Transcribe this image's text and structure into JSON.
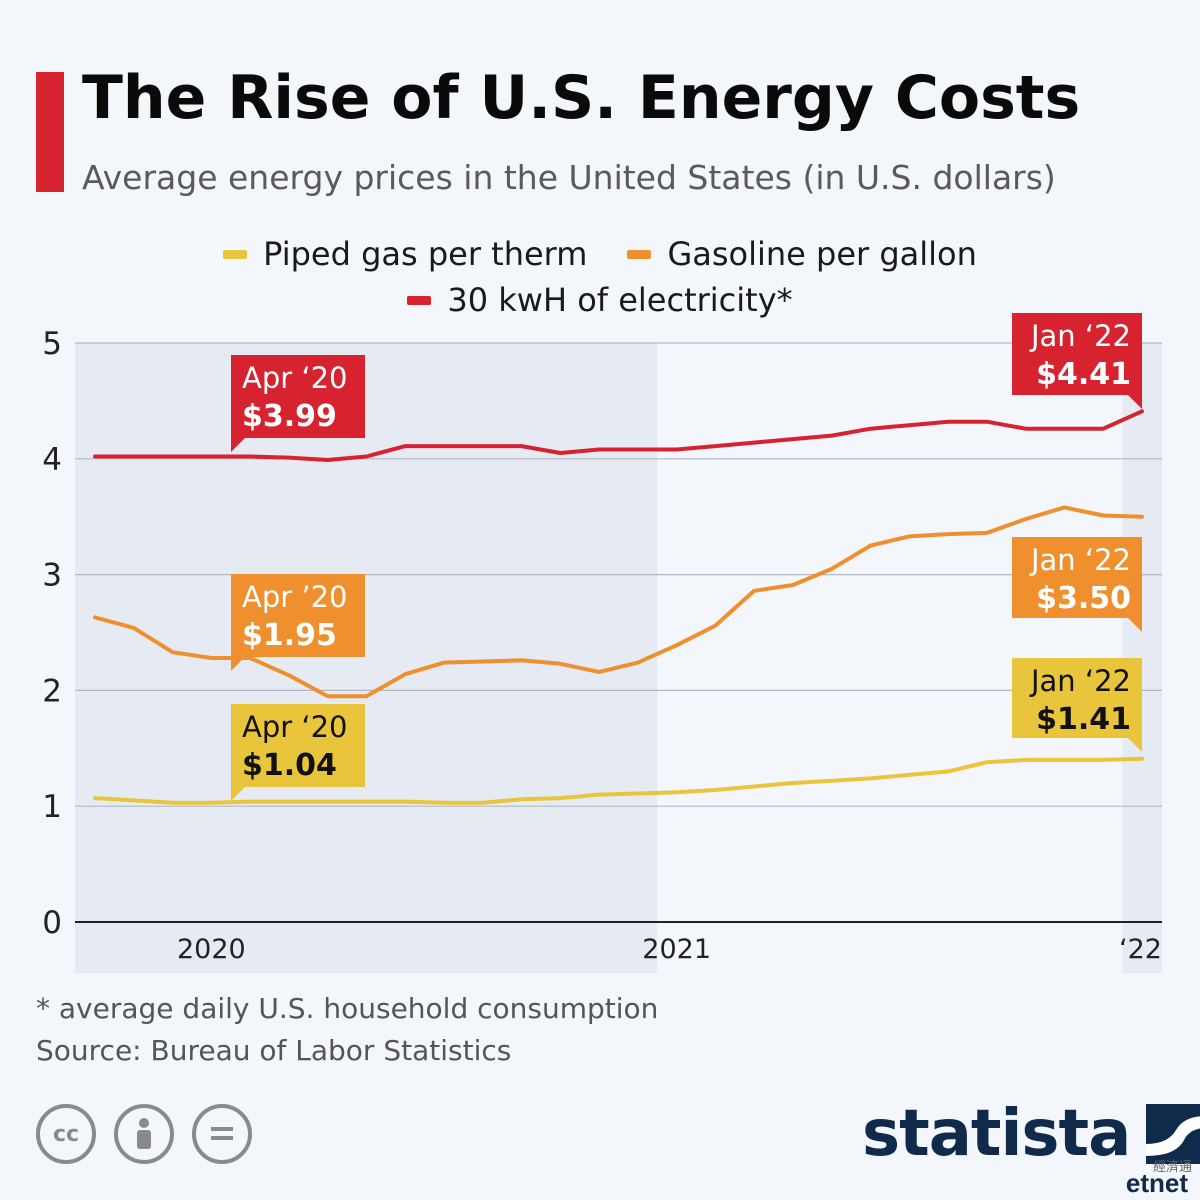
{
  "header": {
    "title": "The Rise of U.S. Energy Costs",
    "subtitle": "Average energy prices in the United States (in U.S. dollars)"
  },
  "legend": {
    "piped_gas": "Piped gas per therm",
    "gasoline": "Gasoline per gallon",
    "electricity": "30 kwH of electricity*"
  },
  "footer": {
    "footnote": "* average daily U.S. household consumption",
    "source": "Source: Bureau of Labor Statistics",
    "brand": "statista",
    "watermark": "etnet",
    "watermark_cn": "經濟通"
  },
  "licenses": [
    "cc",
    "by",
    "nd"
  ],
  "colors": {
    "electricity": "#d7232f",
    "gasoline": "#ef8f2e",
    "piped_gas": "#e8c53a",
    "accent": "#d7232f",
    "brand": "#0f2a4a"
  },
  "chart_data": {
    "type": "line",
    "title": "The Rise of U.S. Energy Costs",
    "subtitle": "Average energy prices in the United States (in U.S. dollars)",
    "x": [
      "Oct 2019",
      "Nov 2019",
      "Dec 2019",
      "Jan 2020",
      "Feb 2020",
      "Mar 2020",
      "Apr 2020",
      "May 2020",
      "Jun 2020",
      "Jul 2020",
      "Aug 2020",
      "Sep 2020",
      "Oct 2020",
      "Nov 2020",
      "Dec 2020",
      "Jan 2021",
      "Feb 2021",
      "Mar 2021",
      "Apr 2021",
      "May 2021",
      "Jun 2021",
      "Jul 2021",
      "Aug 2021",
      "Sep 2021",
      "Oct 2021",
      "Nov 2021",
      "Dec 2021",
      "Jan 2022"
    ],
    "x_tick_labels": [
      "2020",
      "2021",
      "‘22"
    ],
    "x_tick_at": [
      "Jan 2020",
      "Jan 2021",
      "Jan 2022"
    ],
    "shaded_periods": [
      [
        "Oct 2019",
        "Dec 2020"
      ],
      [
        "Jan 2022",
        "Jan 2022"
      ]
    ],
    "series": [
      {
        "name": "30 kwH of electricity*",
        "color": "#d7232f",
        "values": [
          4.02,
          4.02,
          4.02,
          4.02,
          4.02,
          4.01,
          3.99,
          4.02,
          4.11,
          4.11,
          4.11,
          4.11,
          4.05,
          4.08,
          4.08,
          4.08,
          4.11,
          4.14,
          4.17,
          4.2,
          4.26,
          4.29,
          4.32,
          4.32,
          4.26,
          4.26,
          4.26,
          4.41
        ]
      },
      {
        "name": "Gasoline per gallon",
        "color": "#ef8f2e",
        "values": [
          2.63,
          2.54,
          2.33,
          2.28,
          2.28,
          2.13,
          1.95,
          1.95,
          2.14,
          2.24,
          2.25,
          2.26,
          2.23,
          2.16,
          2.24,
          2.39,
          2.56,
          2.86,
          2.91,
          3.05,
          3.25,
          3.33,
          3.35,
          3.36,
          3.48,
          3.58,
          3.51,
          3.5
        ]
      },
      {
        "name": "Piped gas per therm",
        "color": "#e8c53a",
        "values": [
          1.07,
          1.05,
          1.03,
          1.03,
          1.04,
          1.04,
          1.04,
          1.04,
          1.04,
          1.03,
          1.03,
          1.06,
          1.07,
          1.1,
          1.11,
          1.12,
          1.14,
          1.17,
          1.2,
          1.22,
          1.24,
          1.27,
          1.3,
          1.38,
          1.4,
          1.4,
          1.4,
          1.41
        ]
      }
    ],
    "annotations": [
      {
        "series": "30 kwH of electricity*",
        "x": "Apr 2020",
        "label": "Apr ‘20",
        "value": "$3.99"
      },
      {
        "series": "30 kwH of electricity*",
        "x": "Jan 2022",
        "label": "Jan ‘22",
        "value": "$4.41"
      },
      {
        "series": "Gasoline per gallon",
        "x": "Apr 2020",
        "label": "Apr ’20",
        "value": "$1.95"
      },
      {
        "series": "Gasoline per gallon",
        "x": "Jan 2022",
        "label": "Jan ‘22",
        "value": "$3.50"
      },
      {
        "series": "Piped gas per therm",
        "x": "Apr 2020",
        "label": "Apr ‘20",
        "value": "$1.04"
      },
      {
        "series": "Piped gas per therm",
        "x": "Jan 2022",
        "label": "Jan ‘22",
        "value": "$1.41"
      }
    ],
    "y_ticks": [
      0,
      1,
      2,
      3,
      4,
      5
    ],
    "ylim": [
      0,
      5
    ],
    "xlabel": "",
    "ylabel": "",
    "grid": true,
    "legend_position": "top-center"
  }
}
